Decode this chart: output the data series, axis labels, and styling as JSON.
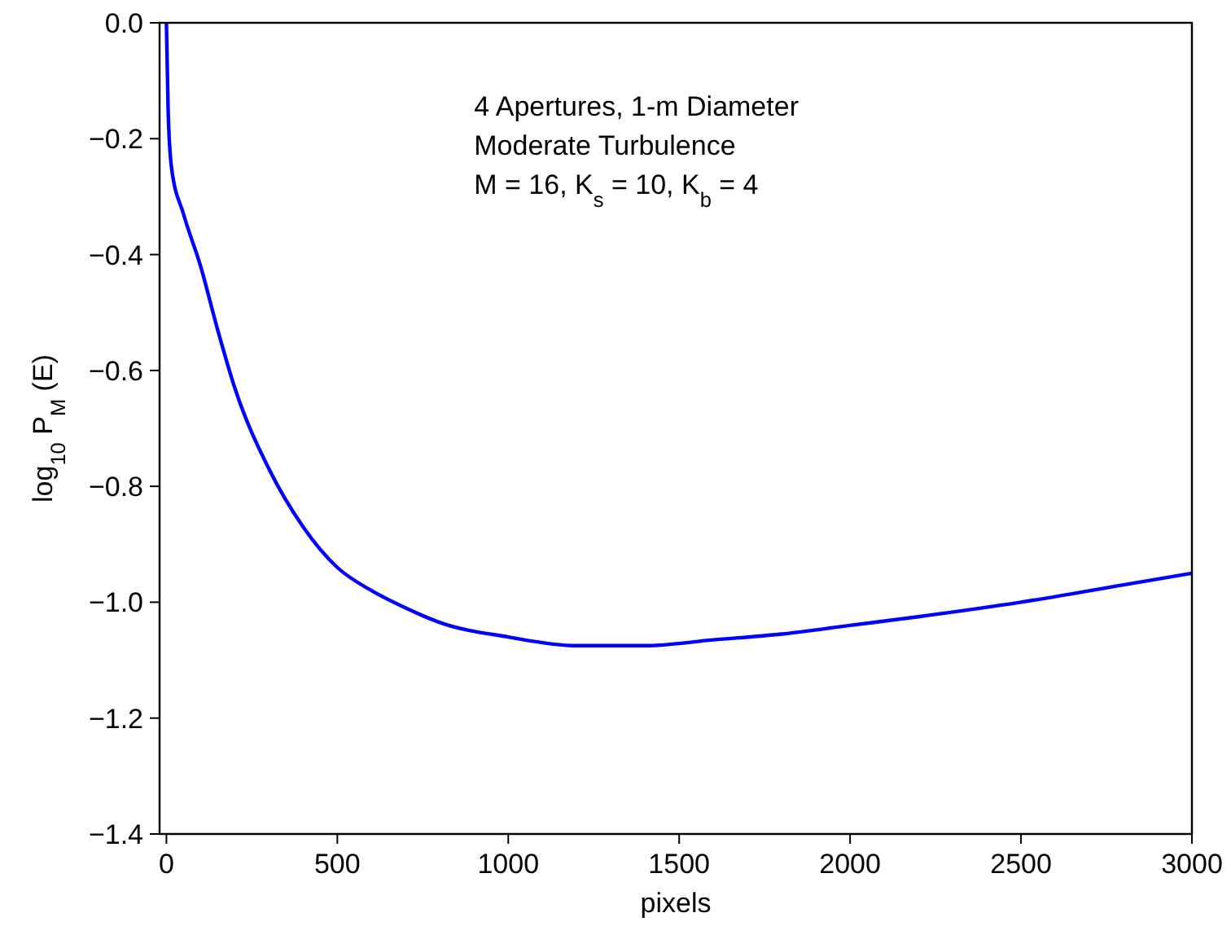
{
  "chart_data": {
    "type": "line",
    "xlabel": "pixels",
    "ylabel": "log$_{10}$ P$_{M}$ (E)",
    "annotations": [
      "4 Apertures, 1-m Diameter",
      "Moderate Turbulence",
      "M = 16, K$_{s}$ = 10, K$_{b}$  = 4"
    ],
    "xlim": [
      -20,
      3000
    ],
    "xticks": [
      0,
      500,
      1000,
      1500,
      2000,
      2500,
      3000
    ],
    "ylim": [
      -1.4,
      0
    ],
    "yticks": [
      {
        "value": -1.4,
        "label": "−1.4"
      },
      {
        "value": -1.2,
        "label": "−1.2"
      },
      {
        "value": -1.0,
        "label": "−1.0"
      },
      {
        "value": -0.8,
        "label": "−0.8"
      },
      {
        "value": -0.6,
        "label": "−0.6"
      },
      {
        "value": -0.4,
        "label": "−0.4"
      },
      {
        "value": -0.2,
        "label": "−0.2"
      },
      {
        "value": 0,
        "label": "0.0"
      }
    ],
    "grid": false,
    "series": [
      {
        "color": "#0000ff",
        "x": [
          0,
          5,
          15,
          50,
          100,
          150,
          200,
          300,
          400,
          500,
          600,
          700,
          800,
          1000,
          1200,
          1400,
          1600,
          1800,
          2000,
          2200,
          2500,
          2800,
          3000
        ],
        "values": [
          0,
          -0.15,
          -0.25,
          -0.33,
          -0.42,
          -0.53,
          -0.63,
          -0.77,
          -0.87,
          -0.94,
          -0.98,
          -1.01,
          -1.035,
          -1.06,
          -1.075,
          -1.075,
          -1.065,
          -1.055,
          -1.04,
          -1.025,
          -1.0,
          -0.97,
          -0.95
        ]
      }
    ]
  }
}
